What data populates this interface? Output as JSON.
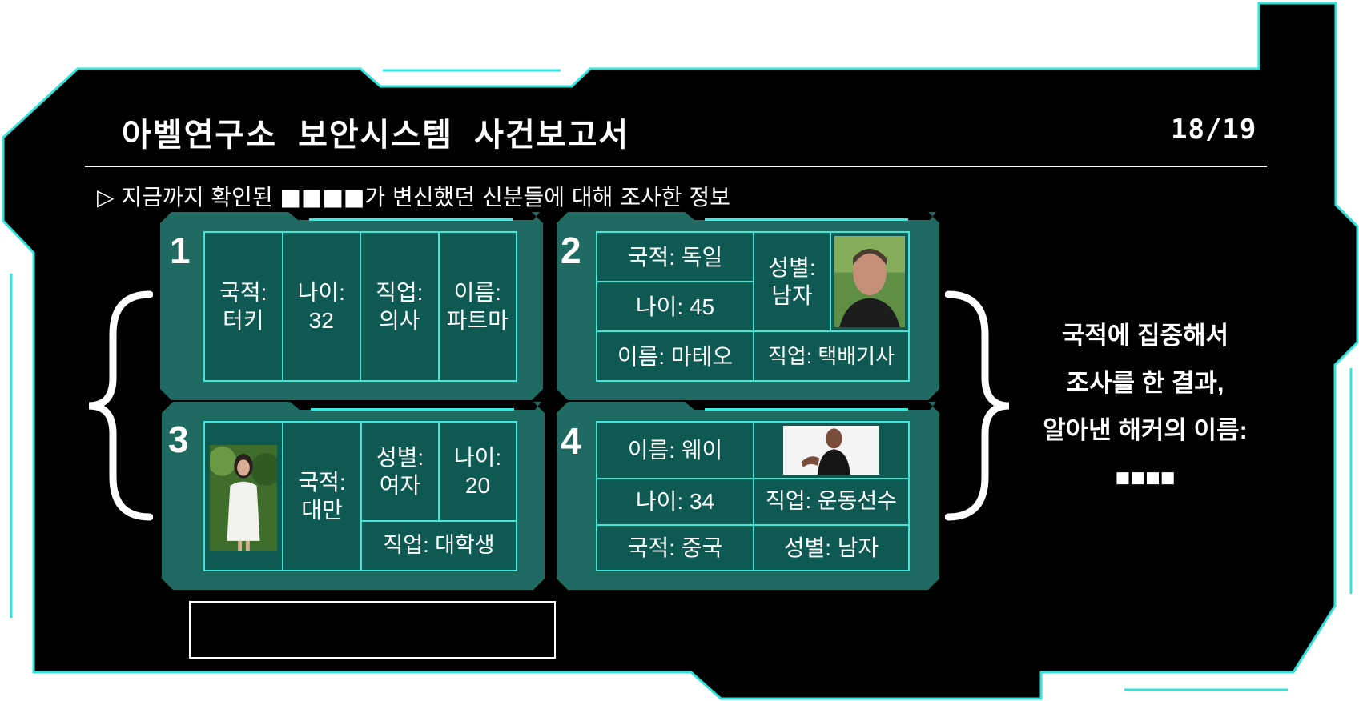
{
  "header": {
    "title": "아벨연구소 보안시스템 사건보고서",
    "page_counter": "18/19",
    "subtitle": "▷ 지금까지 확인된 ■■■■가 변신했던 신분들에 대해 조사한 정보"
  },
  "cards": [
    {
      "number": "1",
      "fields": [
        [
          "국적:",
          "터키"
        ],
        [
          "나이:",
          "32"
        ],
        [
          "직업:",
          "의사"
        ],
        [
          "이름:",
          "파트마"
        ]
      ]
    },
    {
      "number": "2",
      "nationality": "국적: 독일",
      "age": "나이: 45",
      "name": "이름: 마테오",
      "gender": [
        "성별:",
        "남자"
      ],
      "job": "직업: 택배기사"
    },
    {
      "number": "3",
      "nationality": [
        "국적:",
        "대만"
      ],
      "gender": [
        "성별:",
        "여자"
      ],
      "age": [
        "나이:",
        "20"
      ],
      "job": "직업: 대학생"
    },
    {
      "number": "4",
      "name": "이름: 웨이",
      "age": "나이: 34",
      "nationality": "국적: 중국",
      "job": "직업: 운동선수",
      "gender": "성별: 남자"
    }
  ],
  "conclusion": {
    "lines": [
      "국적에 집중해서",
      "조사를 한 결과,",
      "알아낸 해커의 이름:",
      "■■■■"
    ]
  },
  "colors": {
    "frame_bg": "#000000",
    "frame_outline": "#2fe3dc",
    "card_bg": "#1f6b61",
    "cell_bg": "#0e5a53",
    "cell_border": "#42e6d9"
  }
}
